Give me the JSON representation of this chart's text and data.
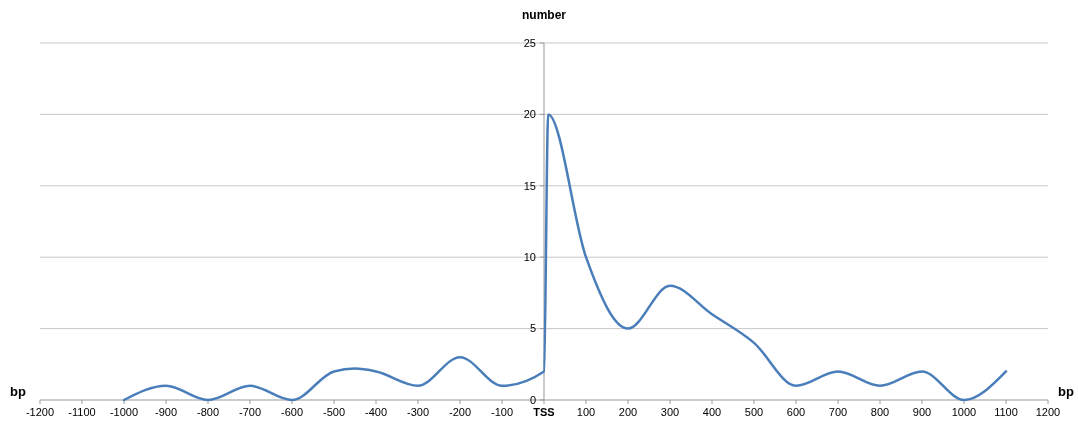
{
  "chart_data": {
    "type": "line",
    "ylabel": "number",
    "xlabel": "bp",
    "x": [
      -1000,
      -900,
      -800,
      -700,
      -600,
      -500,
      -450,
      -400,
      -300,
      -200,
      -100,
      0,
      10,
      100,
      200,
      300,
      400,
      500,
      600,
      700,
      800,
      900,
      1000,
      1100
    ],
    "series": [
      {
        "color": "#4a7ebb",
        "values": [
          0,
          1,
          0,
          1,
          0,
          2,
          2.2,
          2,
          1,
          3,
          1,
          2,
          20,
          10,
          5,
          8,
          6,
          4,
          1,
          2,
          1,
          2,
          0,
          2
        ]
      }
    ],
    "xlim": [
      -1200,
      1200
    ],
    "xticks": [
      -1200,
      -1100,
      -1000,
      -900,
      -800,
      -700,
      -600,
      -500,
      -400,
      -300,
      -200,
      -100,
      {
        "value": 0,
        "label": "TSS"
      },
      100,
      200,
      300,
      400,
      500,
      600,
      700,
      800,
      900,
      1000,
      1100,
      1200
    ],
    "ylim": [
      0,
      25
    ],
    "yticks": [
      0,
      5,
      10,
      15,
      20,
      25
    ],
    "grid": "y",
    "marker": "none",
    "line_style": "solid"
  }
}
